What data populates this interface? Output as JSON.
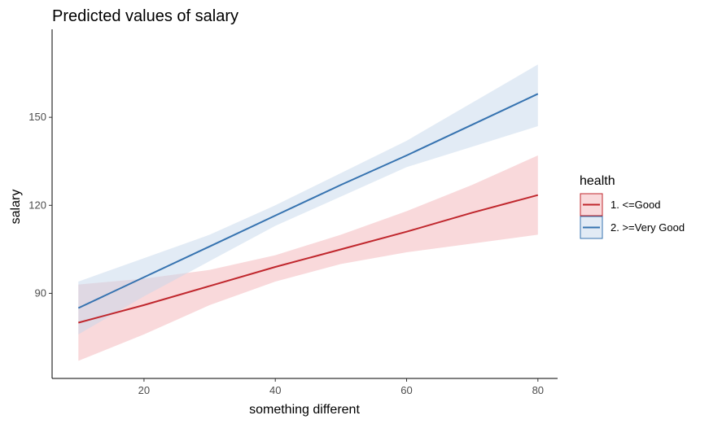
{
  "chart_data": {
    "type": "line",
    "title": "Predicted values of salary",
    "xlabel": "something different",
    "ylabel": "salary",
    "xlim": [
      6,
      83
    ],
    "ylim": [
      61,
      180
    ],
    "xticks": [
      20,
      40,
      60,
      80
    ],
    "yticks": [
      90,
      120,
      150
    ],
    "grid": false,
    "legend": {
      "title": "health",
      "position": "right"
    },
    "series": [
      {
        "name": "1. <=Good",
        "color": "#c0272d",
        "band_color": "#f4b4b8",
        "x": [
          10,
          20,
          30,
          40,
          50,
          60,
          70,
          80
        ],
        "y": [
          80,
          86,
          92.5,
          99,
          105,
          111,
          117.5,
          123.5
        ],
        "lower": [
          67,
          76,
          86,
          94,
          100,
          104,
          107,
          110
        ],
        "upper": [
          93,
          95,
          98,
          103,
          110,
          118,
          127,
          137
        ]
      },
      {
        "name": "2. >=Very Good",
        "color": "#3673b0",
        "band_color": "#c5d8ec",
        "x": [
          10,
          20,
          30,
          40,
          50,
          60,
          70,
          80
        ],
        "y": [
          85,
          95.5,
          106,
          116.5,
          127,
          137,
          147.5,
          158
        ],
        "lower": [
          76,
          89,
          101,
          113,
          123,
          133,
          140,
          147
        ],
        "upper": [
          94,
          102,
          110,
          120,
          131,
          142,
          155,
          168
        ]
      }
    ]
  }
}
